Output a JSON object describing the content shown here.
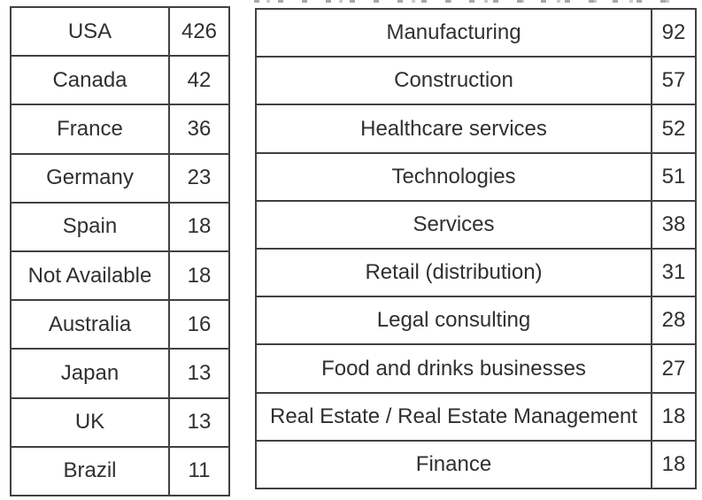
{
  "colors": {
    "background": "#ffffff",
    "border": "#414141",
    "text": "#303030",
    "cropped_marks": "#a8a8a8"
  },
  "countries_table": {
    "rows": [
      {
        "label": "USA",
        "value": "426"
      },
      {
        "label": "Canada",
        "value": "42"
      },
      {
        "label": "France",
        "value": "36"
      },
      {
        "label": "Germany",
        "value": "23"
      },
      {
        "label": "Spain",
        "value": "18"
      },
      {
        "label": "Not Available",
        "value": "18"
      },
      {
        "label": "Australia",
        "value": "16"
      },
      {
        "label": "Japan",
        "value": "13"
      },
      {
        "label": "UK",
        "value": "13"
      },
      {
        "label": "Brazil",
        "value": "11"
      }
    ]
  },
  "industries_table": {
    "rows": [
      {
        "label": "Manufacturing",
        "value": "92"
      },
      {
        "label": "Construction",
        "value": "57"
      },
      {
        "label": "Healthcare services",
        "value": "52"
      },
      {
        "label": "Technologies",
        "value": "51"
      },
      {
        "label": "Services",
        "value": "38"
      },
      {
        "label": "Retail (distribution)",
        "value": "31"
      },
      {
        "label": "Legal consulting",
        "value": "28"
      },
      {
        "label": "Food and drinks businesses",
        "value": "27"
      },
      {
        "label": "Real Estate / Real Estate Management",
        "value": "18"
      },
      {
        "label": "Finance",
        "value": "18"
      }
    ]
  }
}
